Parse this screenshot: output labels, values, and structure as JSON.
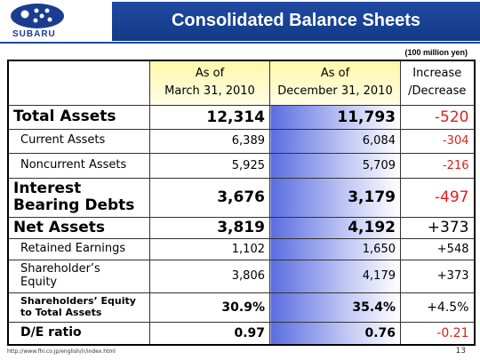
{
  "header": {
    "logo": "SUBARU",
    "title": "Consolidated Balance Sheets"
  },
  "unit": "(100 million yen)",
  "table": {
    "columns": [
      [
        "As of",
        "March 31, 2010"
      ],
      [
        "As of",
        "December 31, 2010"
      ],
      [
        "Increase",
        "/Decrease"
      ]
    ],
    "rows": [
      [
        "Total Assets",
        "12,314",
        "11,793",
        "-520"
      ],
      [
        "Current Assets",
        "6,389",
        "6,084",
        "-304"
      ],
      [
        "Noncurrent Assets",
        "5,925",
        "5,709",
        "-216"
      ],
      [
        "Interest Bearing Debts",
        "3,676",
        "3,179",
        "-497"
      ],
      [
        "Net Assets",
        "3,819",
        "4,192",
        "+373"
      ],
      [
        "Retained Earnings",
        "1,102",
        "1,650",
        "+548"
      ],
      [
        "Shareholder’s Equity",
        "3,806",
        "4,179",
        "+373"
      ],
      [
        "Shareholders’ Equity to Total Assets",
        "30.9%",
        "35.4%",
        "+4.5%"
      ],
      [
        "D/E ratio",
        "0.97",
        "0.76",
        "-0.21"
      ]
    ]
  },
  "footer": {
    "url": "http://www.fhi.co.jp/english/ir/index.html",
    "page": "13"
  }
}
